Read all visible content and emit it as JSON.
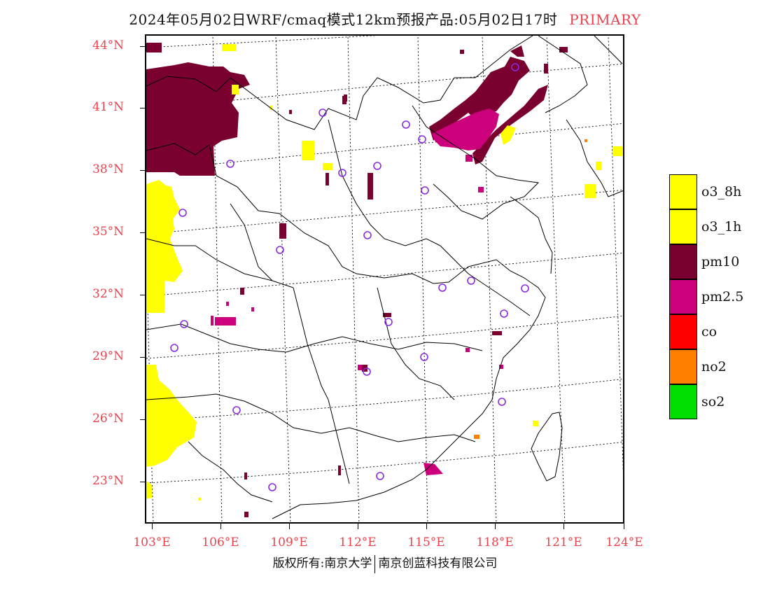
{
  "title": {
    "main": "2024年05月02日WRF/cmaq模式12km预报产品:05月02日17时",
    "tag": "PRIMARY"
  },
  "map": {
    "lat_labels": [
      "44°N",
      "41°N",
      "38°N",
      "35°N",
      "32°N",
      "29°N",
      "26°N",
      "23°N"
    ],
    "lon_labels": [
      "103°E",
      "106°E",
      "109°E",
      "112°E",
      "115°E",
      "118°E",
      "121°E",
      "124°E"
    ],
    "colors": {
      "o3_8h": "#ffff00",
      "o3_1h": "#ffff00",
      "pm10": "#7a0030",
      "pm2_5": "#cc007a",
      "co": "#ff0000",
      "no2": "#ff7f00",
      "so2": "#00dd00",
      "station_marker": "#8a2be2",
      "axis_label": "#e8424d"
    }
  },
  "legend": {
    "items": [
      {
        "label": "o3_8h",
        "color": "#ffff00"
      },
      {
        "label": "o3_1h",
        "color": "#ffff00"
      },
      {
        "label": "pm10",
        "color": "#7a0030"
      },
      {
        "label": "pm2.5",
        "color": "#cc007a"
      },
      {
        "label": "co",
        "color": "#ff0000"
      },
      {
        "label": "no2",
        "color": "#ff7f00"
      },
      {
        "label": "so2",
        "color": "#00dd00"
      }
    ]
  },
  "footer": {
    "left": "版权所有:南京大学",
    "right": "南京创蓝科技有限公司"
  }
}
